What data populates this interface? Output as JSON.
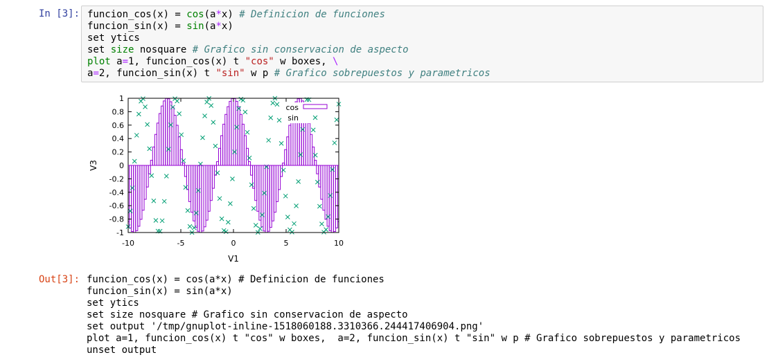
{
  "input_cell": {
    "prompt": "In [3]:",
    "lines": [
      {
        "parts": [
          [
            "t",
            "funcion_cos(x) = "
          ],
          [
            "kw",
            "cos"
          ],
          [
            "t",
            "(a"
          ],
          [
            "op",
            "*"
          ],
          [
            "t",
            "x) "
          ],
          [
            "cm",
            "# Definicion de funciones"
          ]
        ]
      },
      {
        "parts": [
          [
            "t",
            "funcion_sin(x) = "
          ],
          [
            "kw",
            "sin"
          ],
          [
            "t",
            "(a"
          ],
          [
            "op",
            "*"
          ],
          [
            "t",
            "x)"
          ]
        ]
      },
      {
        "parts": [
          [
            "t",
            "set ytics"
          ]
        ]
      },
      {
        "parts": [
          [
            "t",
            "set "
          ],
          [
            "kw",
            "size"
          ],
          [
            "t",
            " nosquare "
          ],
          [
            "cm",
            "# Grafico sin conservacion de aspecto"
          ]
        ]
      },
      {
        "parts": [
          [
            "kw",
            "plot"
          ],
          [
            "t",
            " a"
          ],
          [
            "op",
            "="
          ],
          [
            "t",
            "1, funcion_cos(x) t "
          ],
          [
            "str",
            "\"cos\""
          ],
          [
            "t",
            " w boxes, "
          ],
          [
            "op",
            "\\"
          ]
        ]
      },
      {
        "parts": [
          [
            "t",
            "a"
          ],
          [
            "op",
            "="
          ],
          [
            "t",
            "2, funcion_sin(x) t "
          ],
          [
            "str",
            "\"sin\""
          ],
          [
            "t",
            " w p "
          ],
          [
            "cm",
            "# Grafico sobrepuestos y parametricos"
          ]
        ]
      }
    ]
  },
  "output_cell": {
    "prompt": "Out[3]:",
    "lines": [
      "funcion_cos(x) = cos(a*x) # Definicion de funciones",
      "funcion_sin(x) = sin(a*x)",
      "set ytics",
      "set size nosquare # Grafico sin conservacion de aspecto",
      "set output '/tmp/gnuplot-inline-1518060188.3310366.244417406904.png'",
      "plot a=1, funcion_cos(x) t \"cos\" w boxes,  a=2, funcion_sin(x) t \"sin\" w p # Grafico sobrepuestos y parametricos",
      "unset output"
    ]
  },
  "chart_data": {
    "type": "bar",
    "xlabel": "V1",
    "ylabel": "V3",
    "xlim": [
      -10,
      10
    ],
    "ylim": [
      -1,
      1
    ],
    "xticks": [
      "-10",
      "-5",
      "0",
      "5",
      "10"
    ],
    "yticks": [
      "1",
      "0.8",
      "0.6",
      "0.4",
      "0.2",
      "0",
      "-0.2",
      "-0.4",
      "-0.6",
      "-0.8",
      "-1"
    ],
    "legend": "top-right",
    "series": [
      {
        "name": "cos",
        "style": "boxes",
        "color": "#9400d3",
        "function": "cos(x)",
        "samples": 100
      },
      {
        "name": "sin",
        "style": "points",
        "color": "#009e73",
        "function": "sin(2x)",
        "samples": 100
      }
    ]
  }
}
